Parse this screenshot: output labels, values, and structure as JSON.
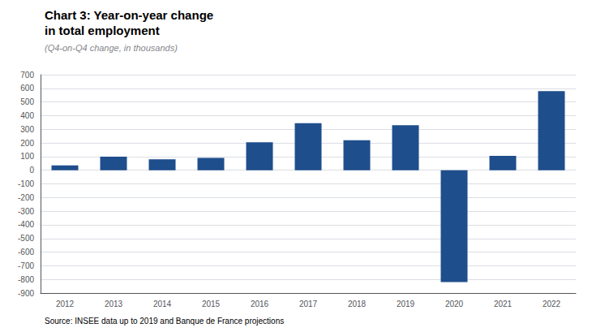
{
  "chart_data": {
    "type": "bar",
    "title": "Chart 3: Year-on-year change\nin total employment",
    "subtitle": "(Q4-on-Q4 change, in thousands)",
    "annotations": [
      "Source: INSEE data up to 2019 and Banque de France projections"
    ],
    "categories": [
      "2012",
      "2013",
      "2014",
      "2015",
      "2016",
      "2017",
      "2018",
      "2019",
      "2020",
      "2021",
      "2022"
    ],
    "values": [
      35,
      100,
      80,
      90,
      205,
      345,
      220,
      330,
      -820,
      105,
      580
    ],
    "color": "#1f4e8c",
    "ylim": [
      -900,
      700
    ],
    "yticks": [
      -900,
      -800,
      -700,
      -600,
      -500,
      -400,
      -300,
      -200,
      -100,
      0,
      100,
      200,
      300,
      400,
      500,
      600,
      700
    ],
    "grid": true
  }
}
